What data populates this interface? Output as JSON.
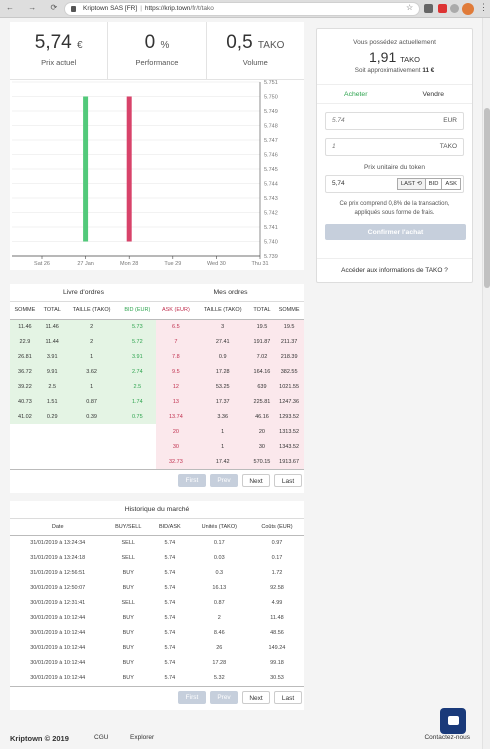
{
  "browser": {
    "site_name": "Kriptown SAS [FR]",
    "url_host": "https://krip.town",
    "url_path": "/fr/t/tako"
  },
  "stats": [
    {
      "value": "5,74",
      "unit": "€",
      "label": "Prix actuel"
    },
    {
      "value": "0",
      "unit": "%",
      "label": "Performance"
    },
    {
      "value": "0,5",
      "unit": "TAKO",
      "label": "Volume"
    }
  ],
  "chart_data": {
    "type": "bar",
    "x_ticks": [
      "Sat 26",
      "27 Jan",
      "Mon 28",
      "Tue 29",
      "Wed 30",
      "Thu 31"
    ],
    "y_ticks": [
      "5.739",
      "5.740",
      "5.741",
      "5.742",
      "5.743",
      "5.744",
      "5.745",
      "5.746",
      "5.747",
      "5.748",
      "5.749",
      "5.750",
      "5.751"
    ],
    "ylim": [
      5.739,
      5.751
    ],
    "bars": [
      {
        "x": "27 Jan",
        "low": 5.74,
        "high": 5.75,
        "color": "#52c97a"
      },
      {
        "x": "Mon 28",
        "low": 5.74,
        "high": 5.75,
        "color": "#d8436a"
      }
    ],
    "grid": true
  },
  "orderbook": {
    "title_bids": "Livre d'ordres",
    "title_asks": "Mes ordres",
    "bid_headers": [
      "SOMME",
      "TOTAL",
      "TAILLE (TAKO)",
      "BID (EUR)"
    ],
    "ask_headers": [
      "ASK (EUR)",
      "TAILLE (TAKO)",
      "TOTAL",
      "SOMME"
    ],
    "bids": [
      [
        "11.46",
        "11.46",
        "2",
        "5.73"
      ],
      [
        "22.9",
        "11.44",
        "2",
        "5.72"
      ],
      [
        "26.81",
        "3.91",
        "1",
        "3.91"
      ],
      [
        "36.72",
        "9.91",
        "3.62",
        "2.74"
      ],
      [
        "39.22",
        "2.5",
        "1",
        "2.5"
      ],
      [
        "40.73",
        "1.51",
        "0.87",
        "1.74"
      ],
      [
        "41.02",
        "0.29",
        "0.39",
        "0.75"
      ]
    ],
    "asks": [
      [
        "6.5",
        "3",
        "19.5",
        "19.5"
      ],
      [
        "7",
        "27.41",
        "191.87",
        "211.37"
      ],
      [
        "7.8",
        "0.9",
        "7.02",
        "218.39"
      ],
      [
        "9.5",
        "17.28",
        "164.16",
        "382.55"
      ],
      [
        "12",
        "53.25",
        "639",
        "1021.55"
      ],
      [
        "13",
        "17.37",
        "225.81",
        "1247.36"
      ],
      [
        "13.74",
        "3.36",
        "46.16",
        "1293.52"
      ],
      [
        "20",
        "1",
        "20",
        "1313.52"
      ],
      [
        "30",
        "1",
        "30",
        "1343.52"
      ],
      [
        "32.73",
        "17.42",
        "570.15",
        "1913.67"
      ]
    ]
  },
  "pager": {
    "first": "First",
    "prev": "Prev",
    "next": "Next",
    "last": "Last"
  },
  "history": {
    "title": "Historique du marché",
    "headers": [
      "Date",
      "BUY/SELL",
      "BID/ASK",
      "Unités (TAKO)",
      "Coûts (EUR)"
    ],
    "rows": [
      [
        "31/01/2019 à 13:24:34",
        "SELL",
        "5.74",
        "0.17",
        "0.97"
      ],
      [
        "31/01/2019 à 13:24:18",
        "SELL",
        "5.74",
        "0.03",
        "0.17"
      ],
      [
        "31/01/2019 à 12:56:51",
        "BUY",
        "5.74",
        "0.3",
        "1.72"
      ],
      [
        "30/01/2019 à 12:50:07",
        "BUY",
        "5.74",
        "16.13",
        "92.58"
      ],
      [
        "30/01/2019 à 12:31:41",
        "SELL",
        "5.74",
        "0.87",
        "4.99"
      ],
      [
        "30/01/2019 à 10:12:44",
        "BUY",
        "5.74",
        "2",
        "11.48"
      ],
      [
        "30/01/2019 à 10:12:44",
        "BUY",
        "5.74",
        "8.46",
        "48.56"
      ],
      [
        "30/01/2019 à 10:12:44",
        "BUY",
        "5.74",
        "26",
        "149.24"
      ],
      [
        "30/01/2019 à 10:12:44",
        "BUY",
        "5.74",
        "17.28",
        "99.18"
      ],
      [
        "30/01/2019 à 10:12:44",
        "BUY",
        "5.74",
        "5.32",
        "30.53"
      ]
    ]
  },
  "panel": {
    "holding_label": "Vous possédez actuellement",
    "holding_value": "1,91",
    "holding_unit": "TAKO",
    "approx_label": "Soit approximativement",
    "approx_value": "11 €",
    "tab_buy": "Acheter",
    "tab_sell": "Vendre",
    "eur_value": "5.74",
    "eur_unit": "EUR",
    "tako_value": "1",
    "tako_unit": "TAKO",
    "price_label": "Prix unitaire du token",
    "price_value": "5,74",
    "seg_last": "LAST ⟲",
    "seg_bid": "BID",
    "seg_ask": "ASK",
    "note": "Ce prix comprend 0,8% de la transaction, appliqués sous forme de frais.",
    "confirm": "Confirmer l'achat",
    "info_link": "Accéder aux informations de TAKO ?"
  },
  "footer": {
    "brand": "Kriptown © 2019",
    "cgu": "CGU",
    "explorer": "Explorer",
    "contact": "Contactez-nous"
  },
  "colors": {
    "green": "#2ea44f",
    "red": "#c0304f",
    "disabled": "#c6cfdc",
    "chat": "#1a3a7a"
  }
}
